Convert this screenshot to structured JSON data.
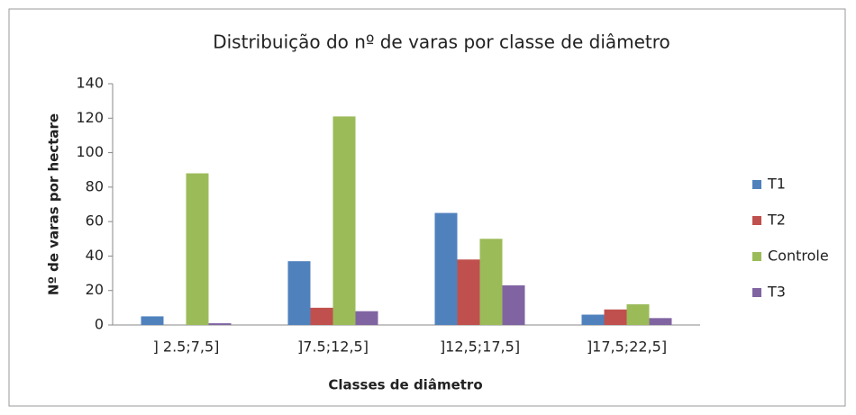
{
  "chart_data": {
    "type": "bar",
    "title": "Distribuição do nº de varas por classe de diâmetro",
    "x_label": "Classes de diâmetro",
    "y_label": "Nº de varas por hectare",
    "categories": [
      "] 2.5;7,5]",
      "]7.5;12,5]",
      "]12,5;17,5]",
      "]17,5;22,5]"
    ],
    "series": [
      {
        "name": "T1",
        "color": "#4f81bd",
        "values": [
          5,
          37,
          65,
          6
        ]
      },
      {
        "name": "T2",
        "color": "#c0504d",
        "values": [
          0,
          10,
          38,
          9
        ]
      },
      {
        "name": "Controle",
        "color": "#9bbb59",
        "values": [
          88,
          121,
          50,
          12
        ]
      },
      {
        "name": "T3",
        "color": "#8064a2",
        "values": [
          1,
          8,
          23,
          4
        ]
      }
    ],
    "ylim": [
      0,
      140
    ],
    "yticks": [
      0,
      20,
      40,
      60,
      80,
      100,
      120,
      140
    ],
    "grid": false,
    "legend": "right"
  }
}
